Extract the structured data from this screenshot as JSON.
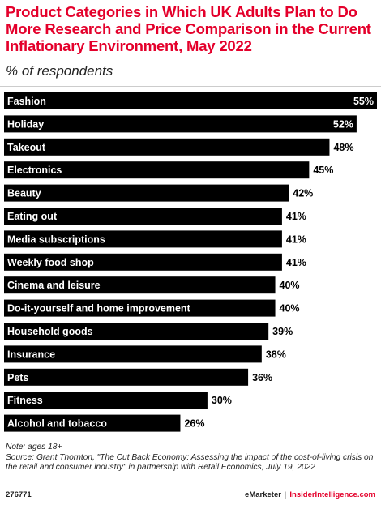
{
  "title": "Product Categories in Which UK Adults Plan to Do More Research and Price Comparison in the Current Inflationary Environment, May 2022",
  "subtitle": "% of respondents",
  "note": "Note: ages 18+",
  "source": "Source: Grant Thornton, \"The Cut Back Economy: Assessing the impact of the cost-of-living crisis on the retail and consumer industry\" in partnership with Retail Economics, July 19, 2022",
  "footer": {
    "chart_id": "276771",
    "brand_left": "eMarketer",
    "separator": "|",
    "brand_right": "InsiderIntelligence.com"
  },
  "colors": {
    "title": "#e4002b",
    "bar": "#000000",
    "bar_label": "#ffffff"
  },
  "chart_data": {
    "type": "bar",
    "orientation": "horizontal",
    "categories": [
      "Fashion",
      "Holiday",
      "Takeout",
      "Electronics",
      "Beauty",
      "Eating out",
      "Media subscriptions",
      "Weekly food shop",
      "Cinema and leisure",
      "Do-it-yourself and home improvement",
      "Household goods",
      "Insurance",
      "Pets",
      "Fitness",
      "Alcohol and tobacco"
    ],
    "values": [
      55,
      52,
      48,
      45,
      42,
      41,
      41,
      41,
      40,
      40,
      39,
      38,
      36,
      30,
      26
    ],
    "value_labels": [
      "55%",
      "52%",
      "48%",
      "45%",
      "42%",
      "41%",
      "41%",
      "41%",
      "40%",
      "40%",
      "39%",
      "38%",
      "36%",
      "30%",
      "26%"
    ],
    "xlim": [
      0,
      55
    ],
    "grid": false,
    "legend": "none"
  }
}
